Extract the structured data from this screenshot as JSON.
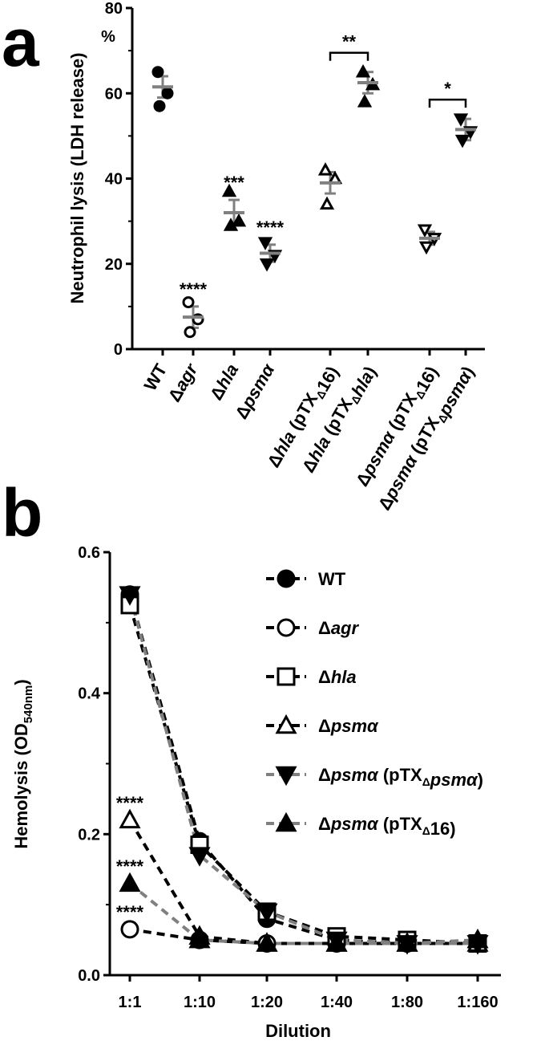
{
  "panels": {
    "a_letter": "a",
    "b_letter": "b"
  },
  "colors": {
    "black": "#000000",
    "gray": "#808080"
  },
  "chart_data": [
    {
      "type": "scatter",
      "panel": "a",
      "ylabel": "Neutrophil lysis (LDH release)",
      "y_unit_label": "%",
      "ylim": [
        0,
        80
      ],
      "yticks": [
        "0",
        "20",
        "40",
        "60",
        "80"
      ],
      "categories": [
        {
          "label": "WT",
          "marker": "circle-filled",
          "points": [
            65,
            60,
            57
          ],
          "mean": 61.5,
          "sem": 2.5,
          "stars": ""
        },
        {
          "label": "Δagr",
          "marker": "circle-open",
          "points": [
            11,
            7,
            4
          ],
          "mean": 7.5,
          "sem": 2.5,
          "stars": "****"
        },
        {
          "label": "Δhla",
          "marker": "triangle-up-filled",
          "points": [
            37,
            30,
            29
          ],
          "mean": 32,
          "sem": 3,
          "stars": "***"
        },
        {
          "label": "Δpsmα",
          "marker": "triangle-down-filled",
          "points": [
            25,
            22,
            20
          ],
          "mean": 22.5,
          "sem": 2,
          "stars": "****"
        },
        {
          "label": "Δhla (pTXΔ16)",
          "marker": "triangle-up-open",
          "points": [
            42,
            40,
            34
          ],
          "mean": 39,
          "sem": 2.5,
          "stars": ""
        },
        {
          "label": "Δhla (pTXΔhla)",
          "marker": "triangle-up-filled",
          "points": [
            65,
            62,
            58
          ],
          "mean": 62.5,
          "sem": 2.5,
          "stars": ""
        },
        {
          "label": "Δpsmα (pTXΔ16)",
          "marker": "triangle-down-open",
          "points": [
            28,
            26,
            24
          ],
          "mean": 26,
          "sem": 1.5,
          "stars": ""
        },
        {
          "label": "Δpsmα (pTXΔpsmα)",
          "marker": "triangle-down-filled",
          "points": [
            54,
            51,
            49
          ],
          "mean": 51.5,
          "sem": 2.5,
          "stars": ""
        }
      ],
      "brackets": [
        {
          "from": 4,
          "to": 5,
          "label": "**"
        },
        {
          "from": 6,
          "to": 7,
          "label": "*"
        }
      ]
    },
    {
      "type": "line",
      "panel": "b",
      "xlabel": "Dilution",
      "ylabel": "Hemolysis (OD540nm)",
      "ylabel_main": "Hemolysis (OD",
      "ylabel_sub": "540nm",
      "ylabel_end": ")",
      "ylim": [
        0,
        0.6
      ],
      "yticks": [
        "0.0",
        "0.2",
        "0.4",
        "0.6"
      ],
      "x": [
        "1:1",
        "1:10",
        "1:20",
        "1:40",
        "1:80",
        "1:160"
      ],
      "series": [
        {
          "name": "WT",
          "marker": "circle-filled",
          "line": "black",
          "values": [
            0.54,
            0.19,
            0.08,
            0.05,
            0.045,
            0.045
          ]
        },
        {
          "name": "Δagr",
          "marker": "circle-open",
          "line": "black",
          "values": [
            0.065,
            0.05,
            0.045,
            0.045,
            0.045,
            0.045
          ]
        },
        {
          "name": "Δhla",
          "marker": "square-open",
          "line": "black",
          "values": [
            0.525,
            0.185,
            0.09,
            0.055,
            0.05,
            0.045
          ]
        },
        {
          "name": "Δpsmα",
          "marker": "triangle-up-open",
          "line": "black",
          "values": [
            0.22,
            0.055,
            0.045,
            0.045,
            0.045,
            0.045
          ]
        },
        {
          "name": "Δpsmα (pTXΔpsmα)",
          "marker": "triangle-down-filled",
          "line": "gray",
          "values": [
            0.54,
            0.17,
            0.09,
            0.05,
            0.045,
            0.045
          ]
        },
        {
          "name": "Δpsmα (pTXΔ16)",
          "marker": "triangle-up-filled",
          "line": "gray",
          "values": [
            0.13,
            0.05,
            0.045,
            0.045,
            0.045,
            0.05
          ]
        }
      ],
      "annotations": [
        {
          "x": "1:1",
          "y": 0.22,
          "text": "****"
        },
        {
          "x": "1:1",
          "y": 0.13,
          "text": "****"
        },
        {
          "x": "1:1",
          "y": 0.065,
          "text": "****"
        }
      ]
    }
  ]
}
